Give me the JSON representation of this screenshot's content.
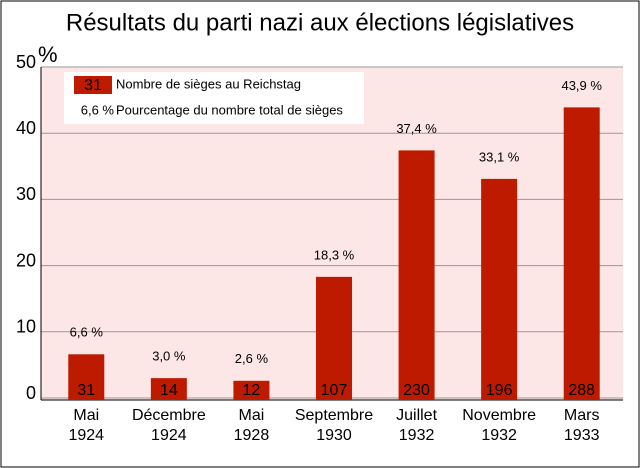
{
  "chart_data": {
    "type": "bar",
    "title": "Résultats du parti nazi aux élections législatives",
    "y_label": "%",
    "categories": [
      [
        "Mai",
        "1924"
      ],
      [
        "Décembre",
        "1924"
      ],
      [
        "Mai",
        "1928"
      ],
      [
        "Septembre",
        "1930"
      ],
      [
        "Juillet",
        "1932"
      ],
      [
        "Novembre",
        "1932"
      ],
      [
        "Mars",
        "1933"
      ]
    ],
    "values": [
      6.6,
      3.0,
      2.6,
      18.3,
      37.4,
      33.1,
      43.9
    ],
    "value_labels": [
      "6,6 %",
      "3,0 %",
      "2,6 %",
      "18,3 %",
      "37,4 %",
      "33,1 %",
      "43,9 %"
    ],
    "seats": [
      31,
      14,
      12,
      107,
      230,
      196,
      288
    ],
    "color": "#bd1a00",
    "ylim": [
      0,
      50
    ],
    "yticks": [
      0,
      10,
      20,
      30,
      40,
      50
    ],
    "grid": true,
    "legend": {
      "seats_example": 31,
      "seats_text": "Nombre de sièges au Reichstag",
      "percent_example": "6,6 %",
      "percent_text": "Pourcentage du nombre total de sièges"
    }
  }
}
